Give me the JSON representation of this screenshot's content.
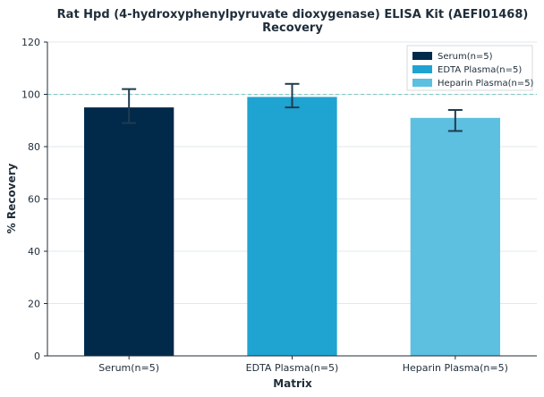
{
  "chart_data": {
    "type": "bar",
    "title_line1": "Rat Hpd (4-hydroxyphenylpyruvate dioxygenase) ELISA Kit (AEFI01468)",
    "title_line2": "Recovery",
    "xlabel": "Matrix",
    "ylabel": "% Recovery",
    "ylim": [
      0,
      120
    ],
    "yticks": [
      0,
      20,
      40,
      60,
      80,
      100,
      120
    ],
    "reference_line": 100,
    "grid": true,
    "legend_position": "top-right",
    "categories": [
      "Serum(n=5)",
      "EDTA Plasma(n=5)",
      "Heparin Plasma(n=5)"
    ],
    "values": [
      95,
      99,
      91
    ],
    "error_low": [
      89,
      95,
      86
    ],
    "error_high": [
      102,
      104,
      94
    ],
    "colors": [
      "#00294a",
      "#1fa3d1",
      "#5dc0e0"
    ],
    "error_color": "#1f3b52",
    "reference_color": "#7ec8c0",
    "legend": [
      "Serum(n=5)",
      "EDTA Plasma(n=5)",
      "Heparin Plasma(n=5)"
    ]
  }
}
